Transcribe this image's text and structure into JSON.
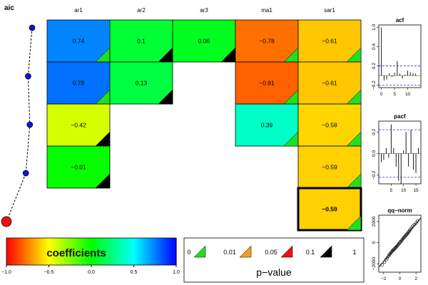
{
  "chart_data": {
    "type": "heatmap",
    "title": "",
    "aic_label": "aic",
    "columns": [
      "ar1",
      "ar2",
      "ar3",
      "ma1",
      "sar1"
    ],
    "cells": [
      {
        "row": 0,
        "col": 0,
        "value": 0.74,
        "label": "0.74",
        "pval_class": 0
      },
      {
        "row": 0,
        "col": 1,
        "value": 0.1,
        "label": "0.1",
        "pval_class": 3
      },
      {
        "row": 0,
        "col": 2,
        "value": 0.06,
        "label": "0.06",
        "pval_class": 3
      },
      {
        "row": 0,
        "col": 3,
        "value": -0.78,
        "label": "−0.78",
        "pval_class": 0
      },
      {
        "row": 0,
        "col": 4,
        "value": -0.61,
        "label": "−0.61",
        "pval_class": 0
      },
      {
        "row": 1,
        "col": 0,
        "value": 0.78,
        "label": "0.78",
        "pval_class": 0
      },
      {
        "row": 1,
        "col": 1,
        "value": 0.13,
        "label": "0.13",
        "pval_class": 3
      },
      {
        "row": 1,
        "col": 3,
        "value": -0.81,
        "label": "−0.81",
        "pval_class": 0
      },
      {
        "row": 1,
        "col": 4,
        "value": -0.61,
        "label": "−0.61",
        "pval_class": 0
      },
      {
        "row": 2,
        "col": 0,
        "value": -0.42,
        "label": "−0.42",
        "pval_class": 3
      },
      {
        "row": 2,
        "col": 3,
        "value": 0.39,
        "label": "0.39",
        "pval_class": 0
      },
      {
        "row": 2,
        "col": 4,
        "value": -0.58,
        "label": "−0.58",
        "pval_class": 0
      },
      {
        "row": 3,
        "col": 0,
        "value": -0.01,
        "label": "−0.01",
        "pval_class": 3
      },
      {
        "row": 3,
        "col": 4,
        "value": -0.59,
        "label": "−0.59",
        "pval_class": 0
      },
      {
        "row": 4,
        "col": 4,
        "value": -0.59,
        "label": "−0.59",
        "pval_class": 0,
        "selected": true
      }
    ],
    "aic_points": [
      0.9,
      0.76,
      0.82,
      0.68,
      0.0
    ],
    "best_row": 4,
    "colorbar": {
      "label": "coefficients",
      "min": -1.0,
      "max": 1.0,
      "ticks": [
        -1.0,
        -0.5,
        0.0,
        0.5,
        1.0
      ],
      "tick_labels": [
        "−1.0",
        "−0.5",
        "0.0",
        "0.5",
        "1.0"
      ]
    },
    "pvalue_legend": {
      "title": "p−value",
      "breaks": [
        "0",
        "0.01",
        "0.05",
        "0.1",
        "1"
      ],
      "colors": [
        "#22dd22",
        "#f0a020",
        "#ee1111",
        "#000000"
      ]
    },
    "acf": {
      "title": "acf",
      "values": [
        1.0,
        -0.1,
        -0.08,
        0.05,
        -0.03,
        0.06,
        0.3,
        0.04,
        -0.06,
        0.02,
        0.1,
        0.07,
        0.05,
        0.04
      ],
      "ci": 0.2,
      "ylim": [
        -0.25,
        1.05
      ],
      "y_ticks": [
        -0.2,
        0.2,
        0.6,
        1.0
      ],
      "y_tick_labels": [
        "−0.2",
        "0.2",
        "0.6",
        "1.0"
      ],
      "x_ticks": [
        0,
        5,
        10
      ],
      "x_tick_labels": [
        "0",
        "5",
        "10"
      ],
      "xlim": [
        -1,
        15
      ]
    },
    "pacf": {
      "title": "pacf",
      "values": [
        -0.08,
        -0.06,
        0.05,
        -0.04,
        0.27,
        0.05,
        -0.12,
        -0.25,
        -0.28,
        0.03,
        0.2,
        -0.12,
        0.22,
        -0.15,
        -0.18,
        0.05
      ],
      "ci": 0.22,
      "ylim": [
        -0.28,
        0.3
      ],
      "y_ticks": [
        -0.2,
        0.0,
        0.2
      ],
      "y_tick_labels": [
        "−0.2",
        "0.0",
        "0.2"
      ],
      "x_ticks": [
        5,
        10,
        15
      ],
      "x_tick_labels": [
        "5",
        "10",
        "15"
      ],
      "xlim": [
        0,
        17
      ]
    },
    "qq": {
      "title": "qq−norm",
      "xlim": [
        -2.6,
        2.6
      ],
      "ylim": [
        -2800,
        2600
      ],
      "x_ticks": [
        -2,
        0,
        2
      ],
      "x_tick_labels": [
        "−2",
        "0",
        "2"
      ],
      "y_ticks": [
        -2000,
        0,
        2000
      ],
      "y_tick_labels": [
        "−2000",
        "0",
        "2000"
      ],
      "line": {
        "intercept": 0,
        "slope": 900
      },
      "points": [
        [
          -2.2,
          -2100
        ],
        [
          -1.9,
          -1850
        ],
        [
          -1.7,
          -1600
        ],
        [
          -1.55,
          -1450
        ],
        [
          -1.4,
          -1300
        ],
        [
          -1.3,
          -1150
        ],
        [
          -1.2,
          -1050
        ],
        [
          -1.1,
          -950
        ],
        [
          -1.0,
          -850
        ],
        [
          -0.9,
          -780
        ],
        [
          -0.8,
          -700
        ],
        [
          -0.7,
          -620
        ],
        [
          -0.6,
          -540
        ],
        [
          -0.5,
          -460
        ],
        [
          -0.4,
          -380
        ],
        [
          -0.3,
          -300
        ],
        [
          -0.2,
          -200
        ],
        [
          -0.1,
          -100
        ],
        [
          0.0,
          0
        ],
        [
          0.1,
          80
        ],
        [
          0.2,
          170
        ],
        [
          0.3,
          270
        ],
        [
          0.4,
          380
        ],
        [
          0.5,
          470
        ],
        [
          0.6,
          560
        ],
        [
          0.7,
          650
        ],
        [
          0.8,
          740
        ],
        [
          0.9,
          830
        ],
        [
          1.0,
          920
        ],
        [
          1.1,
          1020
        ],
        [
          1.2,
          1120
        ],
        [
          1.3,
          1250
        ],
        [
          1.45,
          1400
        ],
        [
          1.6,
          1550
        ],
        [
          1.8,
          1700
        ],
        [
          2.0,
          1850
        ],
        [
          2.2,
          2050
        ]
      ]
    }
  }
}
